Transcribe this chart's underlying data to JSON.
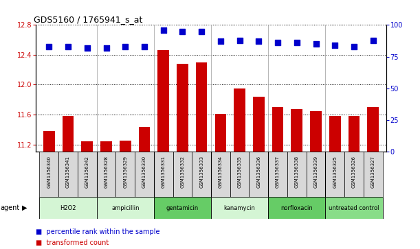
{
  "title": "GDS5160 / 1765941_s_at",
  "samples": [
    "GSM1356340",
    "GSM1356341",
    "GSM1356342",
    "GSM1356328",
    "GSM1356329",
    "GSM1356330",
    "GSM1356331",
    "GSM1356332",
    "GSM1356333",
    "GSM1356334",
    "GSM1356335",
    "GSM1356336",
    "GSM1356337",
    "GSM1356338",
    "GSM1356339",
    "GSM1356325",
    "GSM1356326",
    "GSM1356327"
  ],
  "transformed_count": [
    11.38,
    11.58,
    11.24,
    11.24,
    11.25,
    11.43,
    12.46,
    12.28,
    12.3,
    11.61,
    11.95,
    11.84,
    11.7,
    11.67,
    11.65,
    11.58,
    11.58,
    11.7
  ],
  "percentile_rank": [
    83,
    83,
    82,
    82,
    83,
    83,
    96,
    95,
    95,
    87,
    88,
    87,
    86,
    86,
    85,
    84,
    83,
    88
  ],
  "agents": [
    {
      "label": "H2O2",
      "start": 0,
      "end": 3,
      "color": "#d4f5d4"
    },
    {
      "label": "ampicillin",
      "start": 3,
      "end": 6,
      "color": "#d4f5d4"
    },
    {
      "label": "gentamicin",
      "start": 6,
      "end": 9,
      "color": "#66cc66"
    },
    {
      "label": "kanamycin",
      "start": 9,
      "end": 12,
      "color": "#d4f5d4"
    },
    {
      "label": "norfloxacin",
      "start": 12,
      "end": 15,
      "color": "#66cc66"
    },
    {
      "label": "untreated control",
      "start": 15,
      "end": 18,
      "color": "#88dd88"
    }
  ],
  "ylim_left": [
    11.1,
    12.8
  ],
  "ylim_right": [
    0,
    100
  ],
  "yticks_left": [
    11.2,
    11.6,
    12.0,
    12.4,
    12.8
  ],
  "yticks_right": [
    0,
    25,
    50,
    75,
    100
  ],
  "bar_color": "#cc0000",
  "dot_color": "#0000cc",
  "bar_width": 0.6,
  "dot_size": 35,
  "legend_bar_label": "transformed count",
  "legend_dot_label": "percentile rank within the sample",
  "bg_color": "#ffffff",
  "sample_box_color": "#d8d8d8"
}
